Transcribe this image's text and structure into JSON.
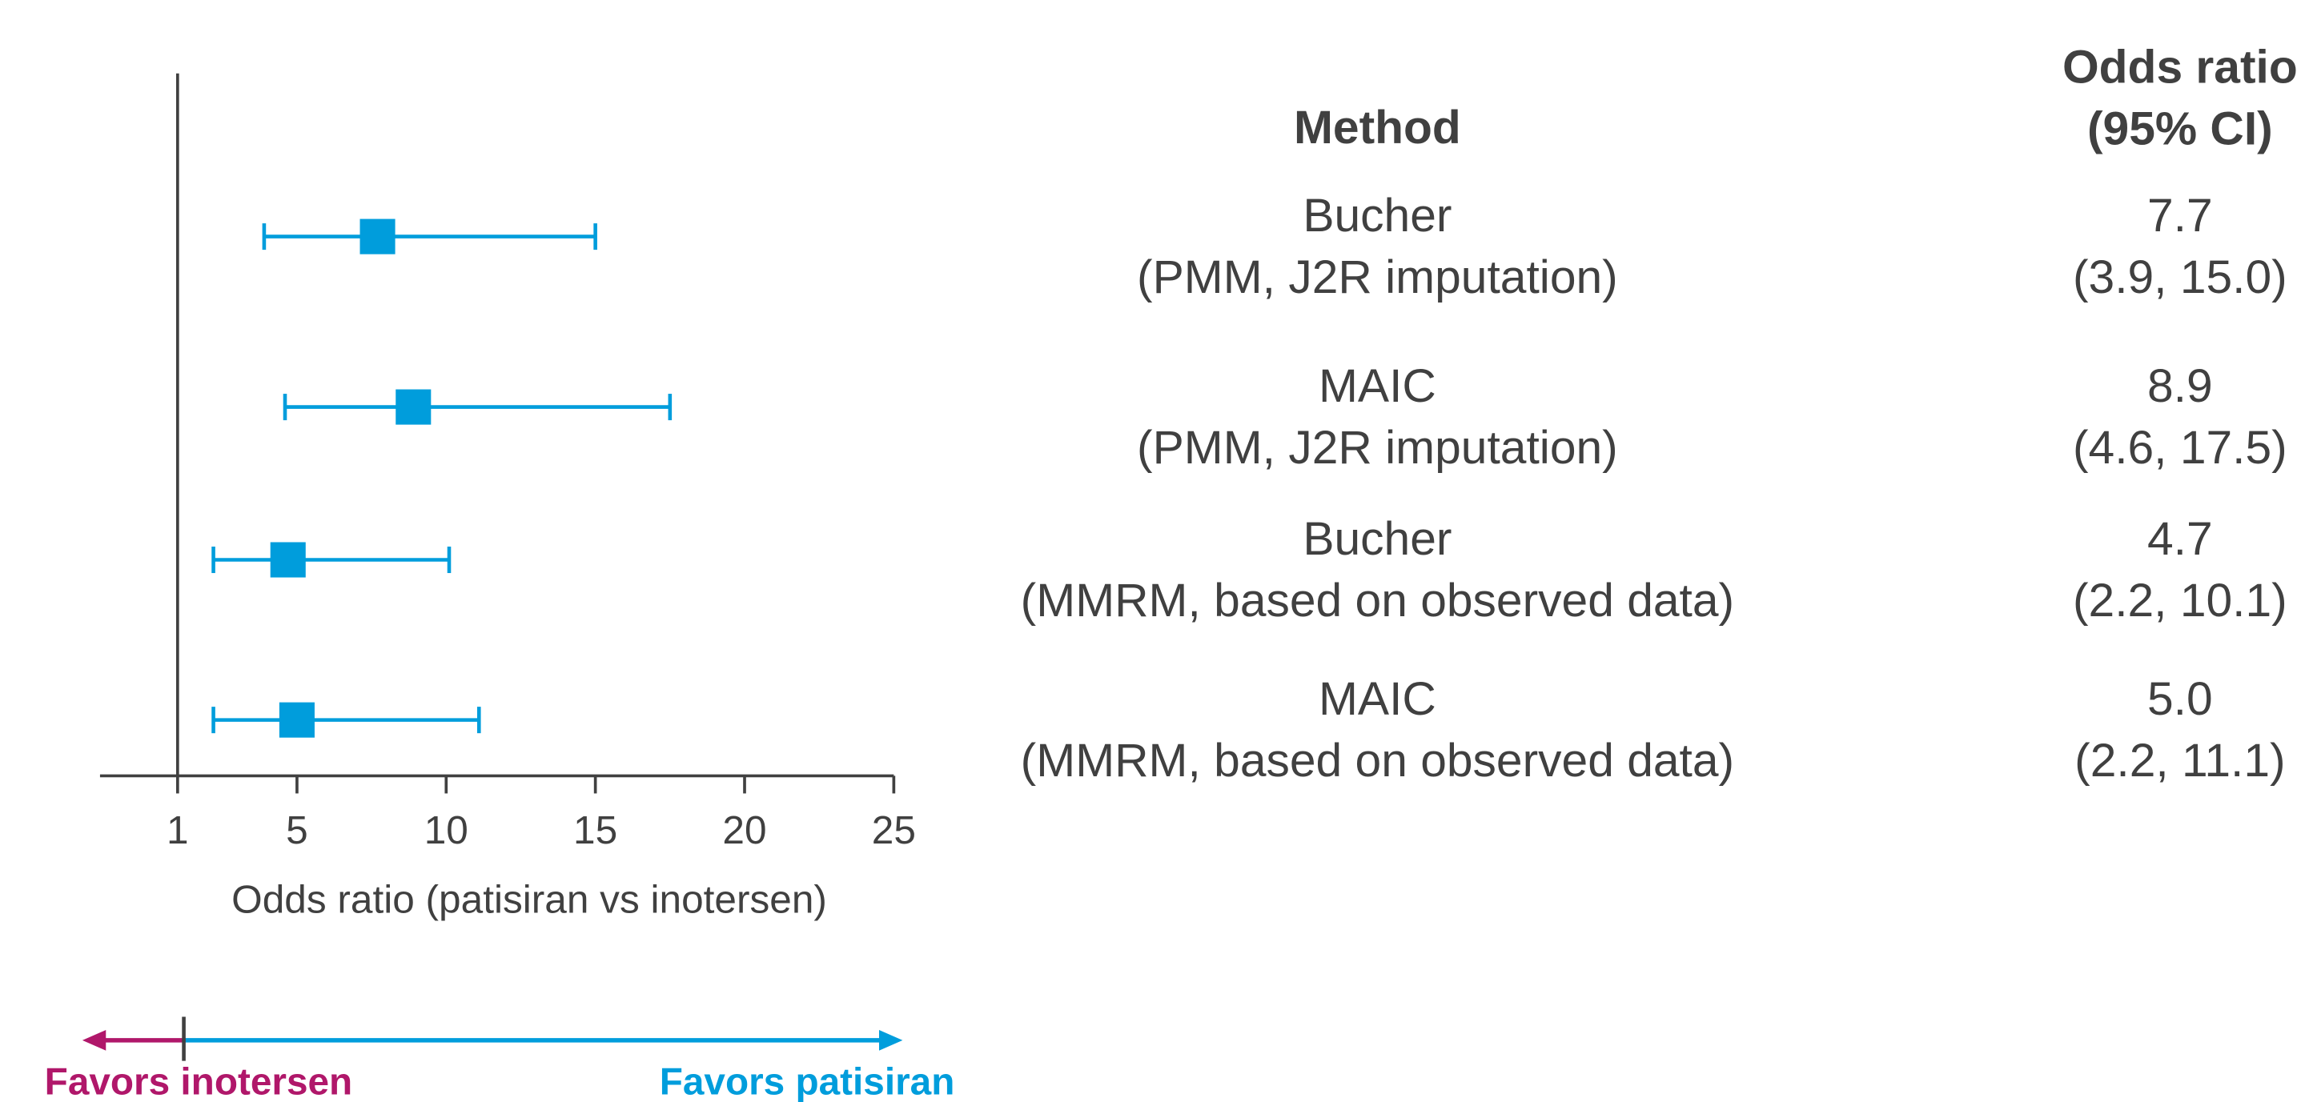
{
  "chart_data": {
    "type": "forest",
    "xlabel": "Odds ratio (patisiran vs inotersen)",
    "xlim": [
      -1.6,
      25
    ],
    "xticks": [
      1,
      5,
      10,
      15,
      20,
      25
    ],
    "reference": 1,
    "column_headers": {
      "method": "Method",
      "estimate": [
        "Odds ratio",
        "(95% CI)"
      ]
    },
    "categories": [
      [
        "Bucher",
        "(PMM, J2R imputation)"
      ],
      [
        "MAIC",
        "(PMM, J2R imputation)"
      ],
      [
        "Bucher",
        "(MMRM, based on observed data)"
      ],
      [
        "MAIC",
        "(MMRM, based on observed data)"
      ]
    ],
    "values": [
      7.7,
      8.9,
      4.7,
      5.0
    ],
    "value_labels": [
      "7.7",
      "8.9",
      "4.7",
      "5.0"
    ],
    "ci_low": [
      3.9,
      4.6,
      2.2,
      2.2
    ],
    "ci_high": [
      15.0,
      17.5,
      10.1,
      11.1
    ],
    "ci_labels": [
      "(3.9, 15.0)",
      "(4.6, 17.5)",
      "(2.2, 10.1)",
      "(2.2, 11.1)"
    ],
    "color": "#009ddc",
    "favors_left": {
      "label": "Favors inotersen",
      "color": "#b0176a"
    },
    "favors_right": {
      "label": "Favors patisiran",
      "color": "#009ddc"
    }
  }
}
